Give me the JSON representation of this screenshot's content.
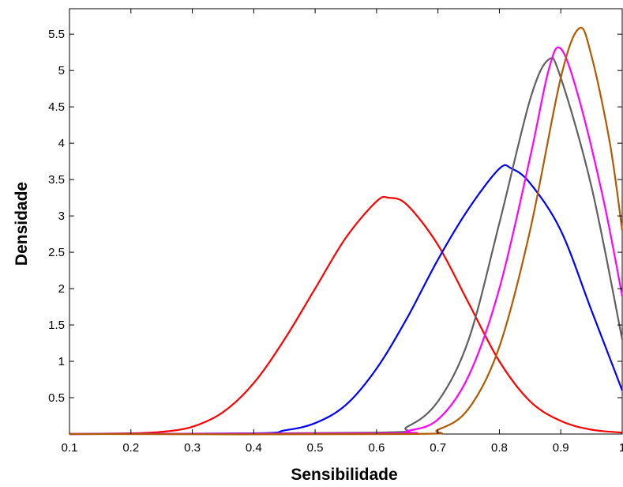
{
  "chart_data": {
    "type": "line",
    "title": "",
    "xlabel": "Sensibilidade",
    "ylabel": "Densidade",
    "xlim": [
      0.1,
      1.0
    ],
    "ylim": [
      0.0,
      5.85
    ],
    "grid": false,
    "x_ticks": [
      0.1,
      0.2,
      0.3,
      0.4,
      0.5,
      0.6,
      0.7,
      0.8,
      0.9,
      1
    ],
    "x_tick_labels": [
      "0.1",
      "0.2",
      "0.3",
      "0.4",
      "0.5",
      "0.6",
      "0.7",
      "0.8",
      "0.9",
      "1"
    ],
    "y_ticks": [
      0.5,
      1,
      1.5,
      2,
      2.5,
      3,
      3.5,
      4,
      4.5,
      5,
      5.5
    ],
    "y_tick_labels": [
      "0.5",
      "1",
      "1.5",
      "2",
      "2.5",
      "3",
      "3.5",
      "4",
      "4.5",
      "5",
      "5.5"
    ],
    "series": [
      {
        "color": "#ff0000",
        "points": [
          [
            0.1,
            0.0
          ],
          [
            0.2,
            0.01
          ],
          [
            0.25,
            0.03
          ],
          [
            0.3,
            0.1
          ],
          [
            0.35,
            0.3
          ],
          [
            0.4,
            0.7
          ],
          [
            0.45,
            1.3
          ],
          [
            0.5,
            2.0
          ],
          [
            0.55,
            2.7
          ],
          [
            0.6,
            3.2
          ],
          [
            0.62,
            3.25
          ],
          [
            0.65,
            3.15
          ],
          [
            0.7,
            2.6
          ],
          [
            0.75,
            1.8
          ],
          [
            0.8,
            1.0
          ],
          [
            0.85,
            0.45
          ],
          [
            0.9,
            0.18
          ],
          [
            0.95,
            0.06
          ],
          [
            1.0,
            0.02
          ]
        ]
      },
      {
        "color": "#0000ff",
        "points": [
          [
            0.1,
            0.0
          ],
          [
            0.4,
            0.01
          ],
          [
            0.45,
            0.05
          ],
          [
            0.5,
            0.15
          ],
          [
            0.55,
            0.4
          ],
          [
            0.6,
            0.9
          ],
          [
            0.65,
            1.6
          ],
          [
            0.7,
            2.4
          ],
          [
            0.75,
            3.1
          ],
          [
            0.8,
            3.65
          ],
          [
            0.82,
            3.65
          ],
          [
            0.85,
            3.45
          ],
          [
            0.9,
            2.8
          ],
          [
            0.95,
            1.7
          ],
          [
            1.0,
            0.6
          ]
        ]
      },
      {
        "color": "#606060",
        "points": [
          [
            0.1,
            0.0
          ],
          [
            0.6,
            0.02
          ],
          [
            0.65,
            0.1
          ],
          [
            0.7,
            0.45
          ],
          [
            0.75,
            1.3
          ],
          [
            0.8,
            2.9
          ],
          [
            0.85,
            4.6
          ],
          [
            0.88,
            5.15
          ],
          [
            0.9,
            4.9
          ],
          [
            0.95,
            3.4
          ],
          [
            1.0,
            1.3
          ]
        ]
      },
      {
        "color": "#ff00ff",
        "points": [
          [
            0.1,
            0.0
          ],
          [
            0.62,
            0.01
          ],
          [
            0.65,
            0.04
          ],
          [
            0.7,
            0.2
          ],
          [
            0.75,
            0.8
          ],
          [
            0.8,
            2.0
          ],
          [
            0.85,
            3.8
          ],
          [
            0.88,
            5.0
          ],
          [
            0.9,
            5.3
          ],
          [
            0.93,
            4.6
          ],
          [
            0.97,
            3.2
          ],
          [
            1.0,
            1.9
          ]
        ]
      },
      {
        "color": "#b35a00",
        "points": [
          [
            0.1,
            0.0
          ],
          [
            0.65,
            0.0
          ],
          [
            0.7,
            0.06
          ],
          [
            0.75,
            0.35
          ],
          [
            0.8,
            1.2
          ],
          [
            0.85,
            2.8
          ],
          [
            0.9,
            4.9
          ],
          [
            0.93,
            5.58
          ],
          [
            0.95,
            5.2
          ],
          [
            0.98,
            4.0
          ],
          [
            1.0,
            2.8
          ]
        ]
      }
    ]
  }
}
